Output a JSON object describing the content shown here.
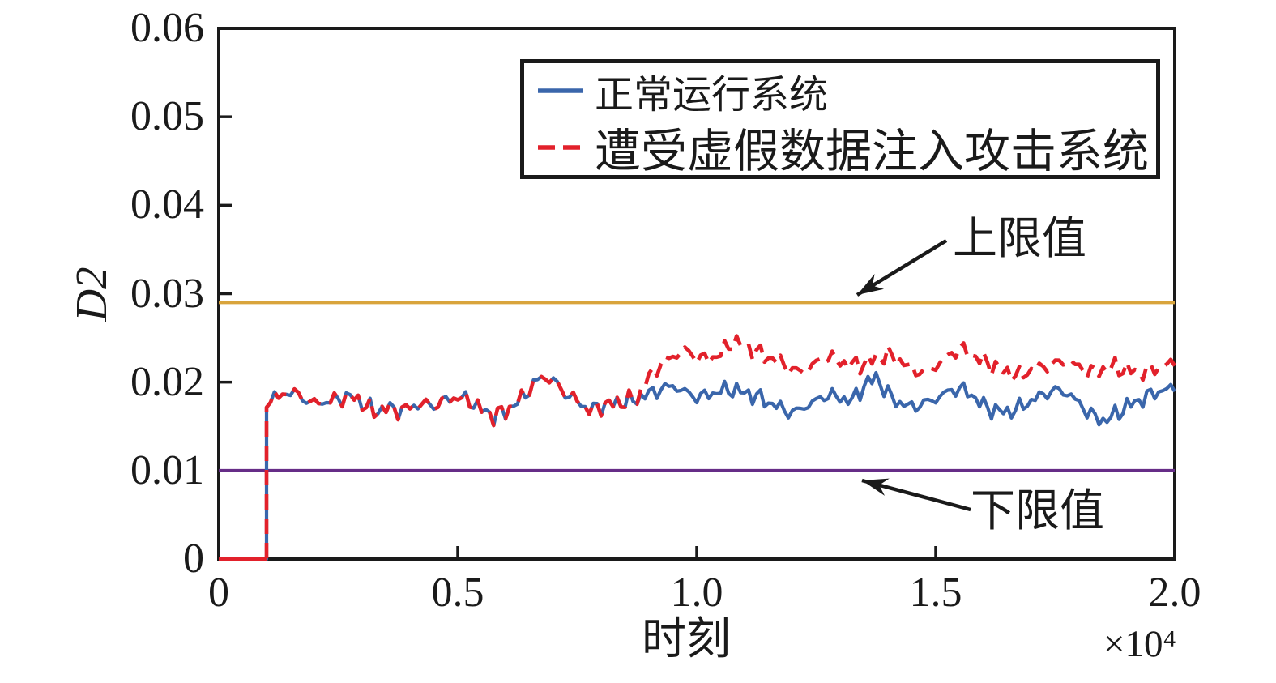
{
  "colors": {
    "normal_line": "#3a66ab",
    "attack_line": "#e2212b",
    "upper_limit_line": "#d9a43c",
    "lower_limit_line": "#662d87",
    "axis": "#1a1a1a",
    "background": "#ffffff"
  },
  "axes": {
    "ylabel": "D2",
    "xlabel": "时刻",
    "x_scale_note": "×10⁴",
    "y_ticks": [
      "0",
      "0.01",
      "0.02",
      "0.03",
      "0.04",
      "0.05",
      "0.06"
    ],
    "x_ticks": [
      "0",
      "0.5",
      "1.0",
      "1.5",
      "2.0"
    ]
  },
  "legend": {
    "entries": [
      {
        "label": "正常运行系统",
        "color": "#3a66ab",
        "line_style": "solid"
      },
      {
        "label": "遭受虚假数据注入攻击系统",
        "color": "#e2212b",
        "line_style": "dashed"
      }
    ]
  },
  "annotations": [
    {
      "label": "上限值",
      "points_to_value": 0.029
    },
    {
      "label": "下限值",
      "points_to_value": 0.01
    }
  ],
  "chart_data": {
    "type": "line",
    "title": "",
    "xlabel": "时刻",
    "ylabel": "D2",
    "x_unit": "×10⁴",
    "xlim": [
      0,
      2.0
    ],
    "ylim": [
      0,
      0.06
    ],
    "x_ticks": [
      0,
      0.5,
      1.0,
      1.5,
      2.0
    ],
    "y_ticks": [
      0,
      0.01,
      0.02,
      0.03,
      0.04,
      0.05,
      0.06
    ],
    "grid": false,
    "legend_position": "inside-top-center",
    "upper_limit": {
      "label": "上限值",
      "value": 0.029
    },
    "lower_limit": {
      "label": "下限值",
      "value": 0.01
    },
    "noise_amplitude": 0.00025,
    "series": [
      {
        "name": "正常运行系统",
        "color": "#3a66ab",
        "line_style": "solid",
        "x": [
          0,
          0.1,
          0.1,
          0.125,
          0.15,
          0.175,
          0.2,
          0.225,
          0.25,
          0.275,
          0.3,
          0.325,
          0.35,
          0.375,
          0.4,
          0.425,
          0.45,
          0.475,
          0.5,
          0.525,
          0.55,
          0.575,
          0.6,
          0.625,
          0.65,
          0.675,
          0.7,
          0.725,
          0.75,
          0.775,
          0.8,
          0.825,
          0.85,
          0.875,
          0.9,
          0.925,
          0.95,
          0.975,
          1.0,
          1.025,
          1.05,
          1.075,
          1.1,
          1.125,
          1.15,
          1.175,
          1.2,
          1.225,
          1.25,
          1.275,
          1.3,
          1.325,
          1.35,
          1.375,
          1.4,
          1.425,
          1.45,
          1.475,
          1.5,
          1.525,
          1.55,
          1.575,
          1.6,
          1.625,
          1.65,
          1.675,
          1.7,
          1.725,
          1.75,
          1.775,
          1.8,
          1.825,
          1.85,
          1.875,
          1.9,
          1.925,
          1.95,
          1.975,
          2.0
        ],
        "y": [
          0,
          0,
          0.018,
          0.0183,
          0.019,
          0.0182,
          0.0176,
          0.0178,
          0.0181,
          0.0184,
          0.0177,
          0.0166,
          0.0171,
          0.0168,
          0.0171,
          0.0176,
          0.0173,
          0.018,
          0.0183,
          0.0179,
          0.0169,
          0.0162,
          0.0167,
          0.0177,
          0.0192,
          0.0206,
          0.0202,
          0.0187,
          0.0179,
          0.0168,
          0.0173,
          0.0176,
          0.0178,
          0.0181,
          0.0187,
          0.0192,
          0.0196,
          0.0189,
          0.0183,
          0.0186,
          0.019,
          0.0192,
          0.0188,
          0.0184,
          0.0177,
          0.0171,
          0.0165,
          0.0172,
          0.0179,
          0.0186,
          0.0182,
          0.0179,
          0.0196,
          0.0206,
          0.0186,
          0.0176,
          0.0172,
          0.0176,
          0.0181,
          0.0189,
          0.0193,
          0.0186,
          0.0173,
          0.0168,
          0.0166,
          0.0171,
          0.0179,
          0.0186,
          0.0191,
          0.0188,
          0.0176,
          0.0163,
          0.0156,
          0.0163,
          0.0173,
          0.0179,
          0.0186,
          0.0191,
          0.0193
        ]
      },
      {
        "name": "遭受虚假数据注入攻击系统",
        "color": "#e2212b",
        "line_style": "dashed",
        "x": [
          0,
          0.1,
          0.1,
          0.125,
          0.15,
          0.175,
          0.2,
          0.225,
          0.25,
          0.275,
          0.3,
          0.325,
          0.35,
          0.375,
          0.4,
          0.425,
          0.45,
          0.475,
          0.5,
          0.525,
          0.55,
          0.575,
          0.6,
          0.625,
          0.65,
          0.675,
          0.7,
          0.725,
          0.75,
          0.775,
          0.8,
          0.825,
          0.85,
          0.875,
          0.9,
          0.925,
          0.95,
          0.975,
          1.0,
          1.025,
          1.05,
          1.075,
          1.1,
          1.125,
          1.15,
          1.175,
          1.2,
          1.225,
          1.25,
          1.275,
          1.3,
          1.325,
          1.35,
          1.375,
          1.4,
          1.425,
          1.45,
          1.475,
          1.5,
          1.525,
          1.55,
          1.575,
          1.6,
          1.625,
          1.65,
          1.675,
          1.7,
          1.725,
          1.75,
          1.775,
          1.8,
          1.825,
          1.85,
          1.875,
          1.9,
          1.925,
          1.95,
          1.975,
          2.0
        ],
        "y": [
          0,
          0,
          0.018,
          0.0183,
          0.019,
          0.0182,
          0.0176,
          0.0178,
          0.0181,
          0.0184,
          0.0177,
          0.0166,
          0.0171,
          0.0168,
          0.0171,
          0.0176,
          0.0173,
          0.018,
          0.0183,
          0.0179,
          0.0169,
          0.0162,
          0.0167,
          0.0177,
          0.0192,
          0.0206,
          0.0202,
          0.0187,
          0.0179,
          0.0168,
          0.0173,
          0.0176,
          0.0178,
          0.0181,
          0.0206,
          0.0221,
          0.0229,
          0.0236,
          0.0228,
          0.0226,
          0.0232,
          0.0246,
          0.0241,
          0.0234,
          0.0228,
          0.0223,
          0.0213,
          0.0212,
          0.0222,
          0.0229,
          0.0223,
          0.0219,
          0.0221,
          0.0227,
          0.0231,
          0.0224,
          0.0215,
          0.0211,
          0.0218,
          0.0229,
          0.0238,
          0.0231,
          0.0224,
          0.0217,
          0.0211,
          0.0207,
          0.0214,
          0.0217,
          0.0221,
          0.0224,
          0.0217,
          0.0211,
          0.0214,
          0.0217,
          0.0214,
          0.0211,
          0.0214,
          0.0218,
          0.0222
        ]
      }
    ]
  }
}
